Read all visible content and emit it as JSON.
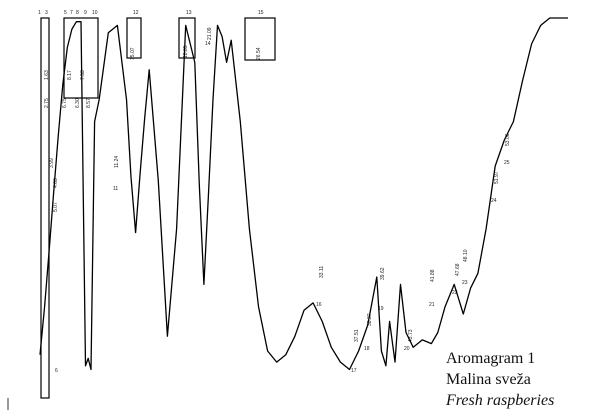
{
  "chart_data": {
    "type": "line",
    "title": "Aromagram 1",
    "subtitle": "Malina sveža",
    "subtitle_en": "Fresh raspberies",
    "xlabel": "",
    "ylabel": "",
    "grid": false,
    "legend": "none",
    "line_color": "#000000",
    "top_markers": [
      "1",
      "3",
      "5",
      "7",
      "8",
      "9",
      "10",
      "12",
      "13",
      "15"
    ],
    "retention_labels": [
      "5.07",
      "4.63",
      "3.99",
      "2.75",
      "1.63",
      "6.75",
      "6.30",
      "8.17",
      "7.53",
      "8.57",
      "11.24",
      "15.07",
      "18.85",
      "21.09",
      "26.54",
      "33.11",
      "37.51",
      "38.37",
      "39.62",
      "43.73",
      "41.88",
      "47.68",
      "48.10",
      "51.97",
      "53.06"
    ],
    "peak_labels": [
      "6",
      "11",
      "14",
      "16",
      "17",
      "18",
      "19",
      "20",
      "21",
      "22",
      "23",
      "24",
      "25"
    ],
    "trace": {
      "x": [
        0.0,
        0.5,
        1.0,
        1.5,
        2.0,
        2.5,
        3.0,
        3.5,
        4.0,
        4.5,
        5.0,
        5.3,
        5.6,
        6.0,
        6.5,
        7.5,
        8.5,
        9.5,
        10.0,
        10.5,
        11.0,
        11.5,
        12.0,
        13.0,
        14.0,
        15.0,
        16.0,
        17.0,
        17.5,
        18.0,
        18.5,
        19.0,
        19.5,
        20.0,
        20.5,
        21.0,
        22.0,
        23.0,
        24.0,
        25.0,
        26.0,
        27.0,
        28.0,
        29.0,
        30.0,
        31.0,
        32.0,
        33.0,
        34.0,
        35.0,
        36.0,
        37.0,
        37.5,
        38.0,
        38.4,
        39.0,
        39.6,
        40.2,
        41.0,
        42.0,
        43.0,
        43.7,
        44.5,
        45.5,
        46.5,
        47.3,
        48.1,
        49.0,
        50.0,
        51.0,
        52.0,
        53.0,
        54.0,
        55.0,
        56.0,
        56.5,
        58.0
      ],
      "y": [
        9,
        22,
        37,
        53,
        68,
        82,
        92,
        97,
        99,
        99,
        6,
        8,
        5,
        72,
        78,
        96,
        98,
        78,
        57,
        42,
        58,
        73,
        86,
        56,
        14,
        43,
        98,
        88,
        55,
        28,
        52,
        78,
        98,
        95,
        88,
        94,
        72,
        43,
        22,
        10,
        7,
        9,
        14,
        21,
        23,
        18,
        11,
        7,
        5,
        10,
        17,
        30,
        10,
        6,
        18,
        7,
        28,
        15,
        11,
        13,
        12,
        15,
        22,
        28,
        20,
        27,
        31,
        43,
        60,
        67,
        72,
        83,
        93,
        98,
        100,
        100,
        100
      ],
      "xlim": [
        0,
        58
      ],
      "ylim": [
        0,
        100
      ]
    }
  },
  "caption": {
    "line1": "Aromagram 1",
    "line2": "Malina sveža",
    "line3": "Fresh raspberies"
  }
}
